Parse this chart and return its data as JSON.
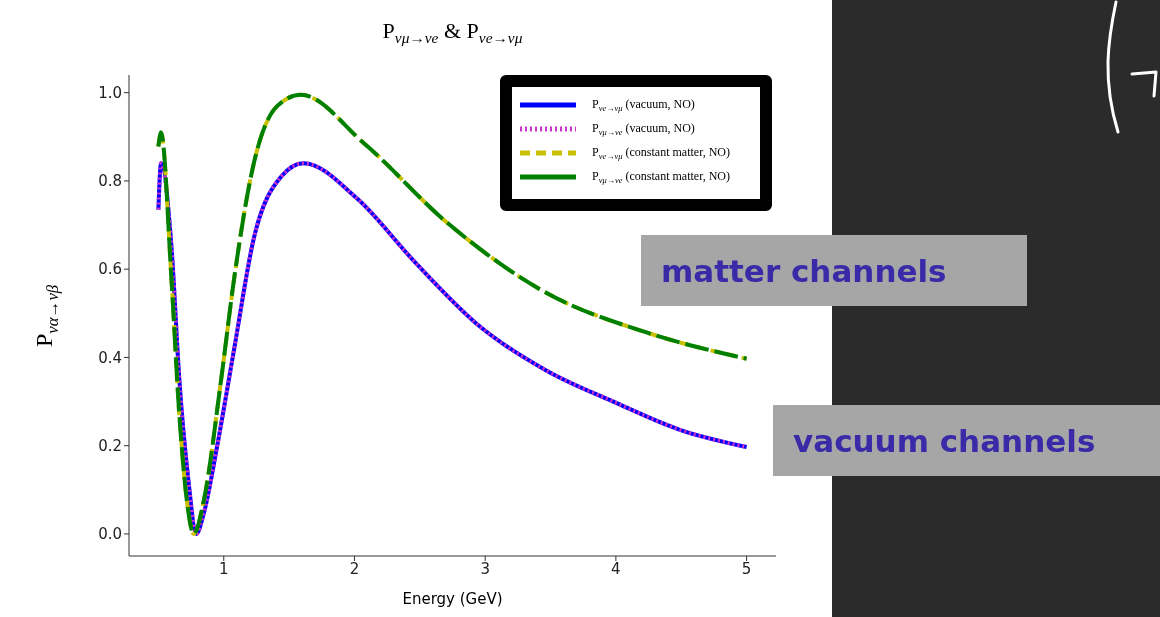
{
  "chart_data": {
    "type": "line",
    "title": "P$_{vμ→ve}$ & P$_{ve→vμ}$",
    "xlabel": "Energy (GeV)",
    "ylabel": "P$_{vα→vβ}$",
    "xlim": [
      0.275,
      5.225
    ],
    "xticks": [
      1,
      2,
      3,
      4,
      5
    ],
    "ylim": [
      -0.05,
      1.04
    ],
    "yticks": [
      {
        "value": 0,
        "label": "0.0"
      },
      0.2,
      0.4,
      0.6,
      0.8,
      {
        "value": 1,
        "label": "1.0"
      }
    ],
    "legend": "top right",
    "grid": false,
    "series": [
      {
        "name": "P$_{ve→vμ}$ (vacuum, NO)",
        "color": "#0000ff",
        "line_style": "solid",
        "x": [
          0.5,
          0.52,
          0.6,
          0.66,
          0.73,
          0.79,
          0.85,
          0.95,
          1.08,
          1.23,
          1.44,
          1.61,
          2.02,
          2.45,
          2.96,
          3.47,
          3.98,
          4.49,
          5
        ],
        "values": [
          0.735,
          0.84,
          0.65,
          0.35,
          0.12,
          0.0,
          0.05,
          0.2,
          0.42,
          0.67,
          0.81,
          0.84,
          0.76,
          0.62,
          0.47,
          0.37,
          0.3,
          0.236,
          0.197
        ]
      },
      {
        "name": "P$_{vμ→ve}$ (vacuum, NO)",
        "color": "#cc33cc",
        "line_style": "dotted",
        "x": [
          0.5,
          0.52,
          0.6,
          0.66,
          0.73,
          0.79,
          0.85,
          0.95,
          1.08,
          1.23,
          1.44,
          1.61,
          2.02,
          2.45,
          2.96,
          3.47,
          3.98,
          4.49,
          5
        ],
        "values": [
          0.735,
          0.84,
          0.65,
          0.35,
          0.12,
          0.0,
          0.05,
          0.2,
          0.42,
          0.67,
          0.81,
          0.84,
          0.76,
          0.62,
          0.47,
          0.37,
          0.3,
          0.236,
          0.197
        ]
      },
      {
        "name": "P$_{ve→vμ}$ (constant matter, NO)",
        "color": "#c8c000",
        "line_style": "dashed",
        "x": [
          0.5,
          0.52,
          0.6,
          0.66,
          0.72,
          0.77,
          0.85,
          0.98,
          1.08,
          1.23,
          1.41,
          1.59,
          2.07,
          2.71,
          3.47,
          4.24,
          5
        ],
        "values": [
          0.878,
          0.91,
          0.576,
          0.27,
          0.07,
          0.0,
          0.08,
          0.35,
          0.58,
          0.84,
          0.97,
          0.995,
          0.886,
          0.705,
          0.546,
          0.456,
          0.397
        ]
      },
      {
        "name": "P$_{vμ→ve}$ (constant matter, NO)",
        "color": "#008000",
        "line_style": "dashed",
        "x": [
          0.5,
          0.52,
          0.6,
          0.66,
          0.72,
          0.77,
          0.85,
          0.98,
          1.08,
          1.23,
          1.41,
          1.59,
          2.07,
          2.71,
          3.47,
          4.24,
          5
        ],
        "values": [
          0.878,
          0.91,
          0.576,
          0.27,
          0.07,
          0.0,
          0.08,
          0.35,
          0.58,
          0.84,
          0.97,
          0.995,
          0.886,
          0.705,
          0.546,
          0.456,
          0.397
        ]
      }
    ],
    "annotations": [
      "matter channels",
      "vacuum channels"
    ]
  }
}
